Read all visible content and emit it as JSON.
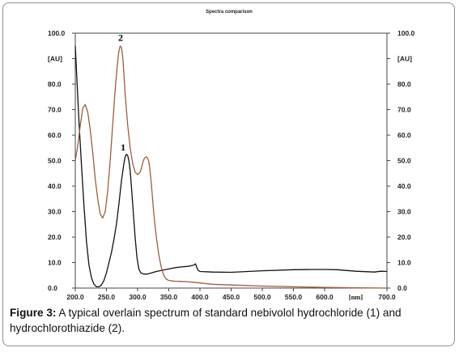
{
  "chart_data": {
    "type": "line",
    "title": "Spectra comparison",
    "xlabel": "[nm]",
    "ylabel_left": "[AU]",
    "ylabel_right": "[AU]",
    "xlim": [
      200,
      700
    ],
    "ylim": [
      0,
      100
    ],
    "x_ticks": [
      "200.0",
      "250.0",
      "300.0",
      "350.0",
      "400.0",
      "450.0",
      "500.0",
      "550.0",
      "600.0",
      "700.0"
    ],
    "x_tick_values": [
      200,
      250,
      300,
      350,
      400,
      450,
      500,
      550,
      600,
      700
    ],
    "y_ticks_left": [
      "100.0",
      "[AU]",
      "80.0",
      "70.0",
      "60.0",
      "50.0",
      "40.0",
      "30.0",
      "20.0",
      "10.0",
      "0.0"
    ],
    "y_ticks_right": [
      "100.0",
      "[AU]",
      "80.0",
      "70.0",
      "60.0",
      "50.0",
      "40.0",
      "30.0",
      "20.0",
      "10.0",
      "0.0"
    ],
    "y_tick_values": [
      100,
      90,
      80,
      70,
      60,
      50,
      40,
      30,
      20,
      10,
      0
    ],
    "grid": false,
    "series": [
      {
        "name": "1",
        "color": "#111111",
        "label_at": [
          282,
          54
        ],
        "x": [
          200,
          203,
          206,
          210,
          214,
          218,
          222,
          226,
          230,
          234,
          238,
          242,
          246,
          250,
          254,
          258,
          262,
          266,
          270,
          274,
          278,
          280,
          282,
          284,
          286,
          288,
          290,
          293,
          296,
          299,
          302,
          305,
          310,
          315,
          320,
          330,
          340,
          350,
          360,
          370,
          380,
          385,
          390,
          393,
          395,
          397,
          400,
          420,
          450,
          500,
          550,
          580,
          600,
          620,
          650,
          680,
          690,
          700
        ],
        "y": [
          95,
          80,
          65,
          48,
          32,
          18,
          9,
          4,
          1.5,
          0.5,
          0.5,
          1.2,
          3,
          6,
          10,
          14,
          19,
          25,
          33,
          42,
          49,
          51.5,
          52.5,
          52,
          50,
          46,
          40,
          30,
          20,
          12,
          7.5,
          6,
          5.5,
          5.5,
          5.8,
          6.5,
          7,
          7.5,
          8,
          8.3,
          8.5,
          8.7,
          9,
          9.5,
          8,
          7,
          6.5,
          6.3,
          6.2,
          6.8,
          7.2,
          7.3,
          7.3,
          7.2,
          6.6,
          6.3,
          6.6,
          6.5
        ]
      },
      {
        "name": "2",
        "color": "#9b5f3f",
        "label_at": [
          278,
          97
        ],
        "x": [
          200,
          204,
          208,
          212,
          216,
          220,
          224,
          228,
          232,
          236,
          240,
          244,
          248,
          252,
          256,
          260,
          264,
          268,
          270,
          272,
          274,
          276,
          278,
          280,
          284,
          288,
          292,
          296,
          300,
          304,
          306,
          308,
          310,
          312,
          314,
          316,
          318,
          320,
          322,
          324,
          326,
          330,
          334,
          338,
          342,
          346,
          350,
          355,
          360,
          370,
          380,
          390,
          400,
          420,
          450,
          500,
          550,
          600,
          650,
          700
        ],
        "y": [
          50,
          56,
          64,
          70.5,
          72,
          69,
          62,
          53,
          43,
          35,
          29,
          27.5,
          30,
          38,
          50,
          64,
          78,
          89,
          93,
          95,
          94.5,
          91,
          84,
          76,
          64,
          55,
          49,
          45.5,
          44.5,
          45.5,
          47,
          49,
          50.5,
          51.2,
          51.5,
          51,
          49.5,
          46,
          41,
          35,
          29,
          20,
          13,
          8,
          5,
          3.5,
          3,
          2.8,
          2.7,
          2.6,
          2.5,
          2.3,
          2,
          1.5,
          1.2,
          0.8,
          0.5,
          0.3,
          0.1,
          0
        ]
      }
    ]
  },
  "caption": {
    "label": "Figure 3:",
    "text": " A typical overlain spectrum of standard nebivolol hydrochloride (1) and  hydrochlorothiazide (2)."
  }
}
